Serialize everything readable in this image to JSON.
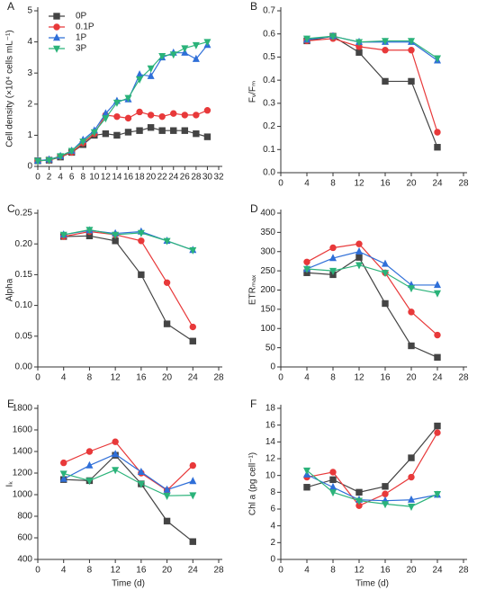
{
  "chart_data": [
    {
      "type": "line",
      "label": "A",
      "ylabel": "Cell density (×10⁴ cells mL⁻¹)",
      "legend": true,
      "legend_position": "upper left",
      "x": [
        0,
        2,
        4,
        6,
        8,
        10,
        12,
        14,
        16,
        18,
        20,
        22,
        24,
        26,
        28,
        30
      ],
      "xlim": [
        0,
        32
      ],
      "xticks": [
        0,
        2,
        4,
        6,
        8,
        10,
        12,
        14,
        16,
        18,
        20,
        22,
        24,
        26,
        28,
        30,
        32
      ],
      "ylim": [
        0,
        5
      ],
      "yticks": [
        0,
        1,
        2,
        3,
        4,
        5
      ],
      "series": [
        {
          "name": "0P",
          "color": "#444444",
          "marker": "square",
          "values": [
            0.18,
            0.2,
            0.3,
            0.45,
            0.7,
            1.0,
            1.05,
            1.0,
            1.1,
            1.15,
            1.25,
            1.15,
            1.15,
            1.15,
            1.05,
            0.95
          ]
        },
        {
          "name": "0.1P",
          "color": "#e8393a",
          "marker": "circle",
          "values": [
            0.18,
            0.2,
            0.32,
            0.45,
            0.75,
            1.05,
            1.65,
            1.6,
            1.55,
            1.75,
            1.65,
            1.6,
            1.7,
            1.65,
            1.65,
            1.8
          ]
        },
        {
          "name": "1P",
          "color": "#2f6fd8",
          "marker": "triangle-up",
          "values": [
            0.18,
            0.22,
            0.33,
            0.5,
            0.85,
            1.15,
            1.7,
            2.1,
            2.15,
            2.95,
            2.9,
            3.5,
            3.65,
            3.65,
            3.45,
            3.9
          ]
        },
        {
          "name": "3P",
          "color": "#2bb37a",
          "marker": "triangle-down",
          "values": [
            0.18,
            0.2,
            0.33,
            0.5,
            0.8,
            1.1,
            1.55,
            2.05,
            2.2,
            2.8,
            3.15,
            3.55,
            3.6,
            3.8,
            3.9,
            4.0
          ]
        }
      ]
    },
    {
      "type": "line",
      "label": "B",
      "ylabel": "Fᵥ/Fₘ",
      "legend": false,
      "x": [
        4,
        8,
        12,
        16,
        20,
        24
      ],
      "xlim": [
        0,
        28
      ],
      "xticks": [
        0,
        4,
        8,
        12,
        16,
        20,
        24,
        28
      ],
      "ylim": [
        0,
        0.7
      ],
      "yticks": [
        {
          "value": 0,
          "label": "0.0"
        },
        0.1,
        0.2,
        0.3,
        0.4,
        0.5,
        0.6,
        0.7
      ],
      "series": [
        {
          "name": "0P",
          "color": "#444444",
          "marker": "square",
          "values": [
            0.57,
            0.59,
            0.52,
            0.395,
            0.395,
            0.11
          ]
        },
        {
          "name": "0.1P",
          "color": "#e8393a",
          "marker": "circle",
          "values": [
            0.57,
            0.58,
            0.545,
            0.53,
            0.53,
            0.175
          ]
        },
        {
          "name": "1P",
          "color": "#2f6fd8",
          "marker": "triangle-up",
          "values": [
            0.575,
            0.59,
            0.565,
            0.565,
            0.565,
            0.485
          ]
        },
        {
          "name": "3P",
          "color": "#2bb37a",
          "marker": "triangle-down",
          "values": [
            0.58,
            0.59,
            0.565,
            0.57,
            0.57,
            0.495
          ]
        }
      ]
    },
    {
      "type": "line",
      "label": "C",
      "ylabel": "Alpha",
      "legend": false,
      "x": [
        4,
        8,
        12,
        16,
        20,
        24
      ],
      "xlim": [
        0,
        28
      ],
      "xticks": [
        0,
        4,
        8,
        12,
        16,
        20,
        24,
        28
      ],
      "ylim": [
        0,
        0.25
      ],
      "yticks": [
        {
          "value": 0,
          "label": "0.00"
        },
        0.05,
        {
          "value": 0.1,
          "label": "0.10"
        },
        0.15,
        {
          "value": 0.2,
          "label": "0.20"
        },
        0.25
      ],
      "series": [
        {
          "name": "0P",
          "color": "#444444",
          "marker": "square",
          "values": [
            0.212,
            0.213,
            0.205,
            0.15,
            0.07,
            0.042
          ]
        },
        {
          "name": "0.1P",
          "color": "#e8393a",
          "marker": "circle",
          "values": [
            0.212,
            0.22,
            0.215,
            0.205,
            0.137,
            0.065
          ]
        },
        {
          "name": "1P",
          "color": "#2f6fd8",
          "marker": "triangle-up",
          "values": [
            0.215,
            0.222,
            0.217,
            0.22,
            0.205,
            0.19
          ]
        },
        {
          "name": "3P",
          "color": "#2bb37a",
          "marker": "triangle-down",
          "values": [
            0.215,
            0.223,
            0.215,
            0.218,
            0.205,
            0.19
          ]
        }
      ]
    },
    {
      "type": "line",
      "label": "D",
      "ylabel": "ETRₘₐₓ",
      "legend": false,
      "x": [
        4,
        8,
        12,
        16,
        20,
        24
      ],
      "xlim": [
        0,
        28
      ],
      "xticks": [
        0,
        4,
        8,
        12,
        16,
        20,
        24,
        28
      ],
      "ylim": [
        0,
        400
      ],
      "yticks": [
        0,
        50,
        100,
        150,
        200,
        250,
        300,
        350,
        400
      ],
      "series": [
        {
          "name": "0P",
          "color": "#444444",
          "marker": "square",
          "values": [
            245,
            240,
            285,
            165,
            55,
            25
          ]
        },
        {
          "name": "0.1P",
          "color": "#e8393a",
          "marker": "circle",
          "values": [
            273,
            310,
            320,
            245,
            143,
            83
          ]
        },
        {
          "name": "1P",
          "color": "#2f6fd8",
          "marker": "triangle-up",
          "values": [
            255,
            283,
            300,
            268,
            213,
            213
          ]
        },
        {
          "name": "3P",
          "color": "#2bb37a",
          "marker": "triangle-down",
          "values": [
            255,
            250,
            265,
            245,
            205,
            192
          ]
        }
      ]
    },
    {
      "type": "line",
      "label": "E",
      "ylabel": "Iₖ",
      "xlabel": "Time (d)",
      "legend": false,
      "x": [
        4,
        8,
        12,
        16,
        20,
        24
      ],
      "xlim": [
        0,
        28
      ],
      "xticks": [
        0,
        4,
        8,
        12,
        16,
        20,
        24,
        28
      ],
      "ylim": [
        400,
        1800
      ],
      "yticks": [
        400,
        600,
        800,
        1000,
        1200,
        1400,
        1600,
        1800
      ],
      "series": [
        {
          "name": "0P",
          "color": "#444444",
          "marker": "square",
          "values": [
            1140,
            1130,
            1365,
            1100,
            755,
            565
          ]
        },
        {
          "name": "0.1P",
          "color": "#e8393a",
          "marker": "circle",
          "values": [
            1295,
            1400,
            1490,
            1200,
            1040,
            1270
          ]
        },
        {
          "name": "1P",
          "color": "#2f6fd8",
          "marker": "triangle-up",
          "values": [
            1145,
            1270,
            1375,
            1210,
            1045,
            1125
          ]
        },
        {
          "name": "3P",
          "color": "#2bb37a",
          "marker": "triangle-down",
          "values": [
            1195,
            1130,
            1230,
            1100,
            990,
            995
          ]
        }
      ]
    },
    {
      "type": "line",
      "label": "F",
      "ylabel": "Chl a (pg cell⁻¹)",
      "xlabel": "Time (d)",
      "legend": false,
      "x": [
        4,
        8,
        12,
        16,
        20,
        24
      ],
      "xlim": [
        0,
        28
      ],
      "xticks": [
        0,
        4,
        8,
        12,
        16,
        20,
        24,
        28
      ],
      "ylim": [
        0,
        18
      ],
      "yticks": [
        0,
        2,
        4,
        6,
        8,
        10,
        12,
        14,
        16,
        18
      ],
      "series": [
        {
          "name": "0P",
          "color": "#444444",
          "marker": "square",
          "values": [
            8.6,
            9.5,
            8.0,
            8.7,
            12.1,
            15.9
          ]
        },
        {
          "name": "0.1P",
          "color": "#e8393a",
          "marker": "circle",
          "values": [
            9.8,
            10.4,
            6.4,
            7.8,
            9.8,
            15.1
          ]
        },
        {
          "name": "1P",
          "color": "#2f6fd8",
          "marker": "triangle-up",
          "values": [
            10.1,
            8.6,
            7.1,
            7.0,
            7.1,
            7.7
          ]
        },
        {
          "name": "3P",
          "color": "#2bb37a",
          "marker": "triangle-down",
          "values": [
            10.6,
            8.0,
            7.0,
            6.6,
            6.3,
            7.8
          ]
        }
      ]
    }
  ]
}
